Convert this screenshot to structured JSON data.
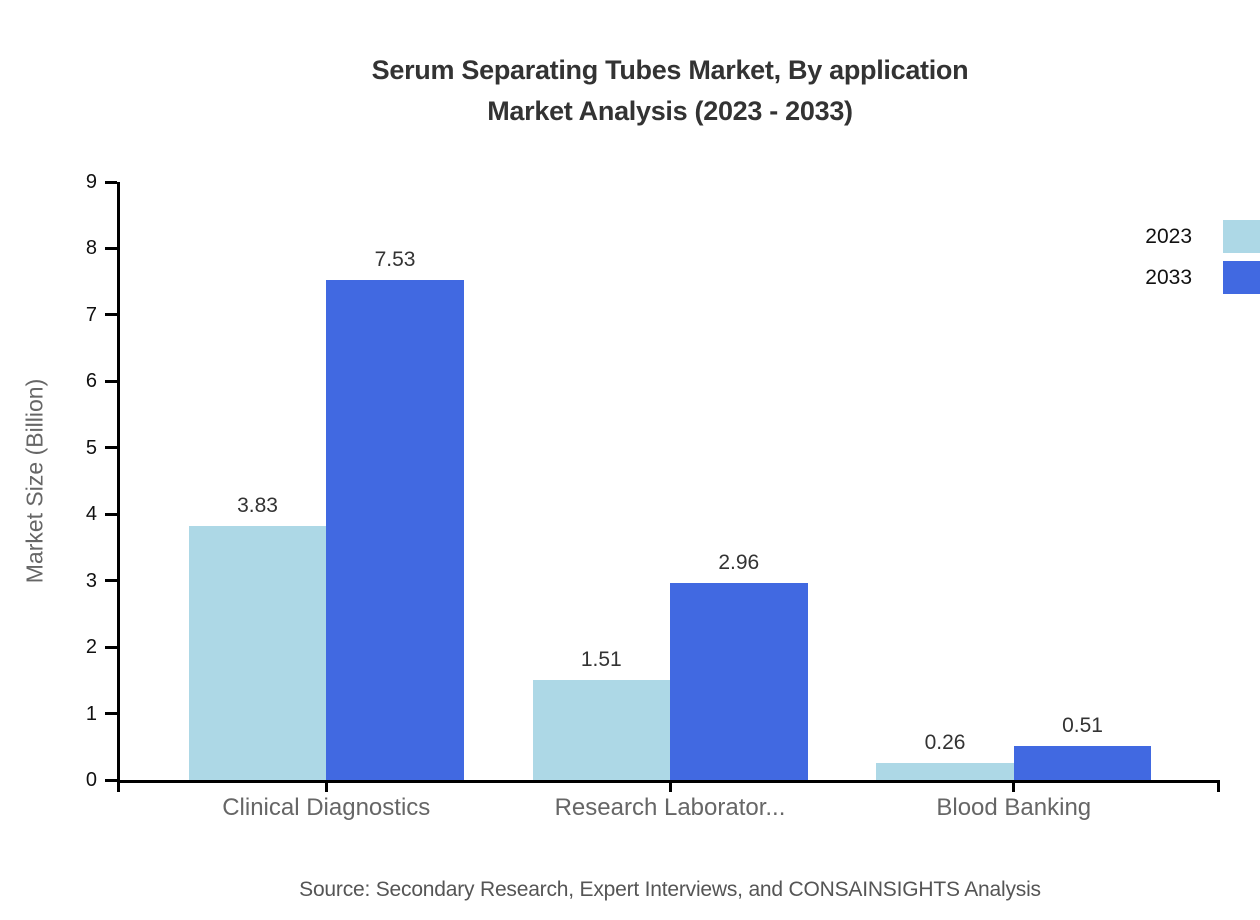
{
  "chart_data": {
    "type": "bar",
    "title": "Serum Separating Tubes Market, By application",
    "subtitle": "Market Analysis (2023 - 2033)",
    "ylabel": "Market Size (Billion)",
    "xlabel": "",
    "categories": [
      "Clinical Diagnostics",
      "Research Laborator...",
      "Blood Banking"
    ],
    "series": [
      {
        "name": "2023",
        "color": "#ADD8E6",
        "values": [
          3.83,
          1.51,
          0.26
        ]
      },
      {
        "name": "2033",
        "color": "#4169E1",
        "values": [
          7.53,
          2.96,
          0.51
        ]
      }
    ],
    "value_labels": [
      [
        "3.83",
        "1.51",
        "0.26"
      ],
      [
        "7.53",
        "2.96",
        "0.51"
      ]
    ],
    "ylim": [
      0,
      9
    ],
    "yticks": [
      0,
      1,
      2,
      3,
      4,
      5,
      6,
      7,
      8,
      9
    ],
    "grid": false,
    "legend_position": "top-right",
    "axis_color": "#000000",
    "source": "Source: Secondary Research, Expert Interviews, and CONSAINSIGHTS Analysis"
  }
}
